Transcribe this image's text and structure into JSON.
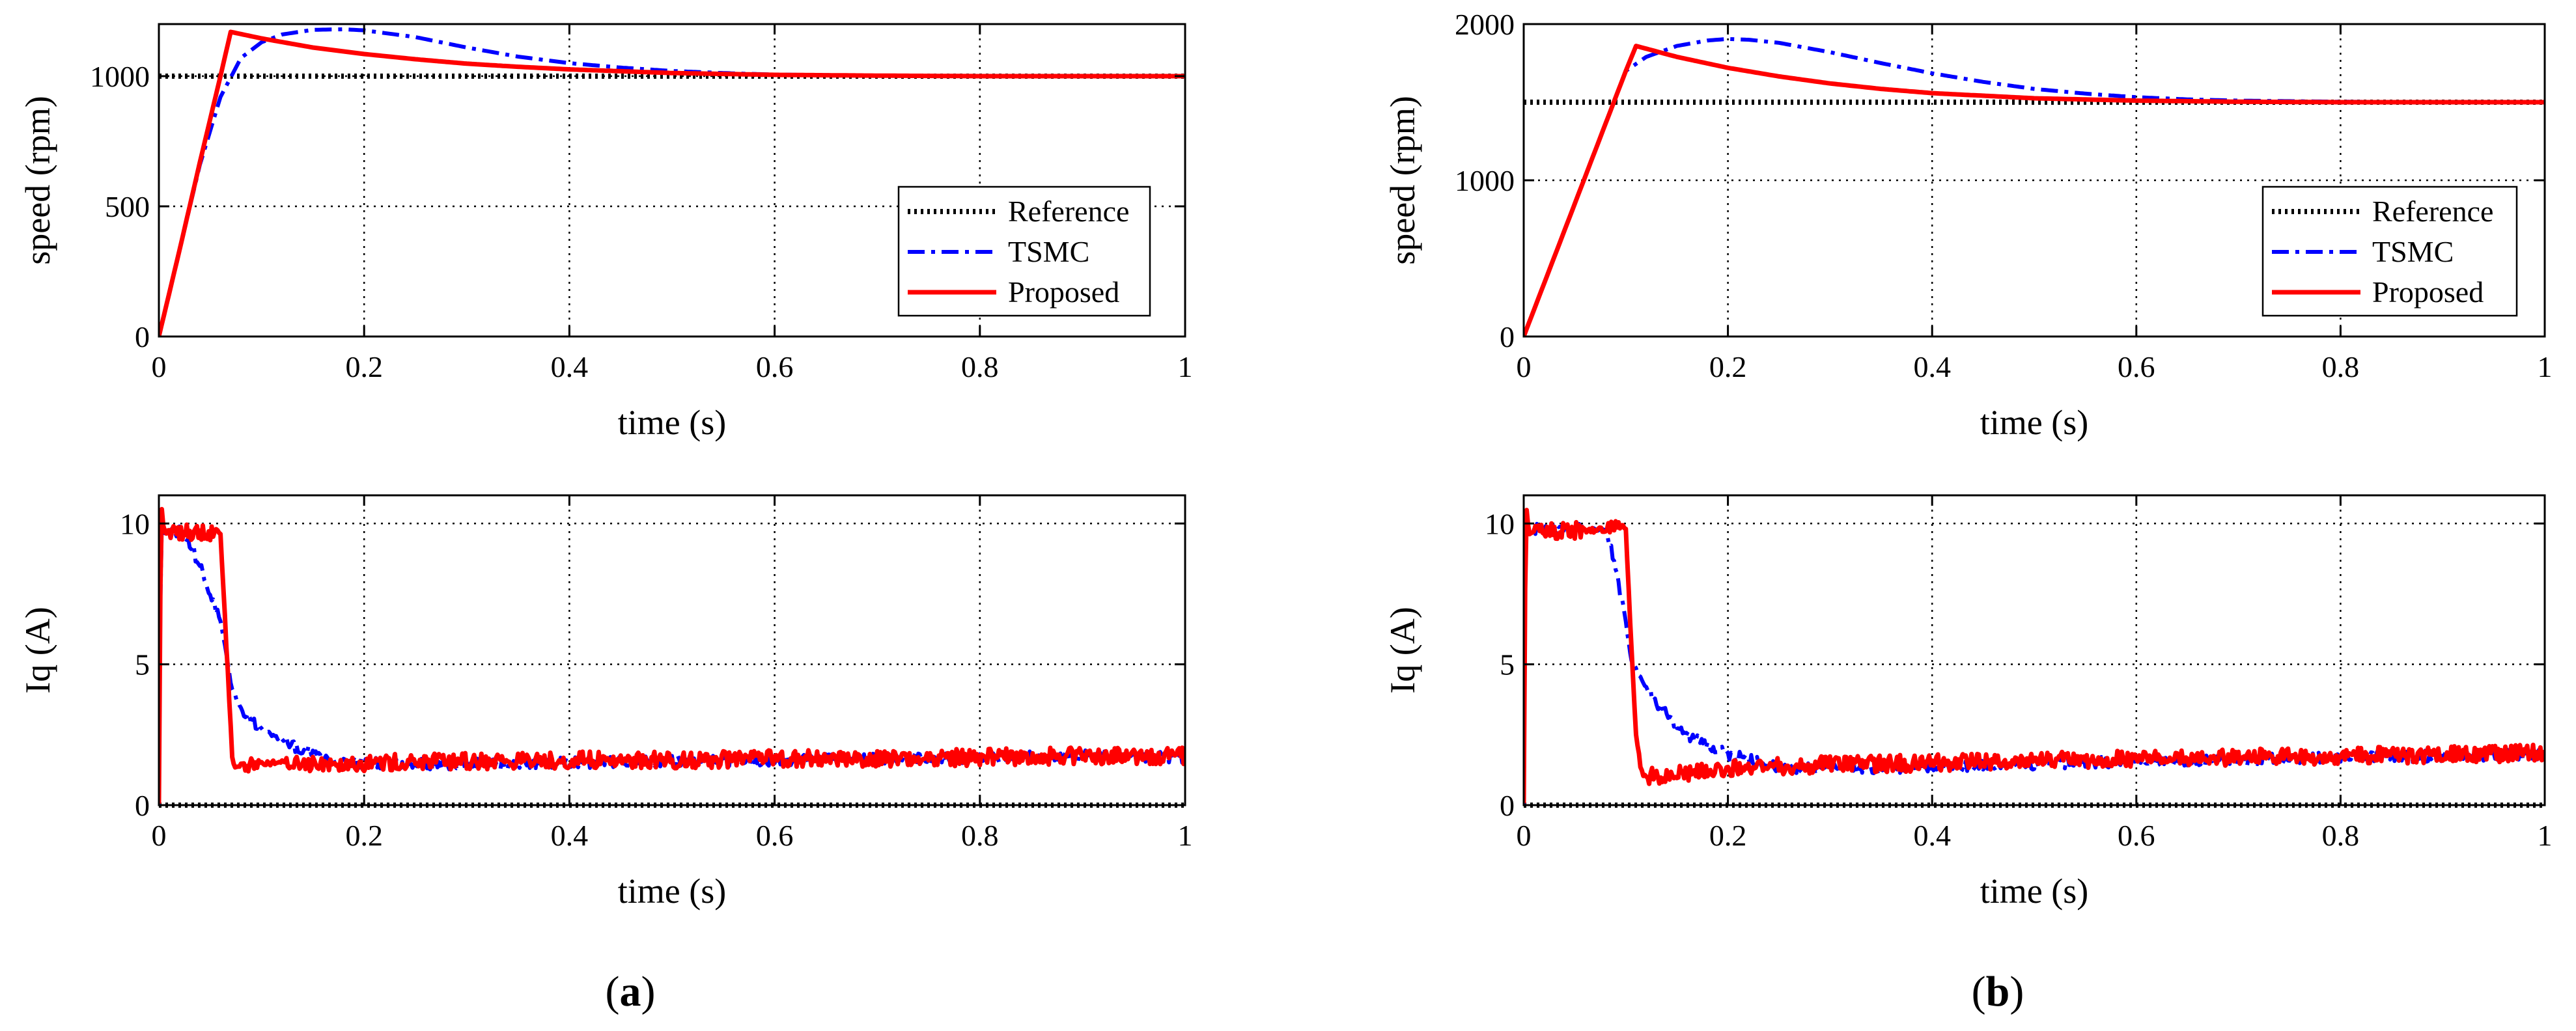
{
  "figure": {
    "captions": [
      {
        "open": "(",
        "letter": "a",
        "close": ")"
      },
      {
        "open": "(",
        "letter": "b",
        "close": ")"
      }
    ]
  },
  "colors": {
    "reference": "#000000",
    "tsmc": "#0000ff",
    "proposed": "#ff0000",
    "grid": "#000000",
    "axes": "#000000"
  },
  "chart_data": [
    {
      "id": "a-speed",
      "type": "line",
      "title": "",
      "xlabel": "time (s)",
      "ylabel": "speed (rpm)",
      "xlim": [
        0,
        1
      ],
      "ylim": [
        0,
        1200
      ],
      "xticks": [
        0,
        0.2,
        0.4,
        0.6,
        0.8,
        1
      ],
      "xticklabels": [
        "0",
        "0.2",
        "0.4",
        "0.6",
        "0.8",
        "1"
      ],
      "yticks": [
        0,
        500,
        1000
      ],
      "yticklabels": [
        "0",
        "500",
        "1000"
      ],
      "grid": true,
      "legend": {
        "placement": "right",
        "entries": [
          "Reference",
          "TSMC",
          "Proposed"
        ]
      },
      "series": [
        {
          "name": "Reference",
          "style": "dotted",
          "x": [
            0,
            1
          ],
          "y": [
            1000,
            1000
          ]
        },
        {
          "name": "TSMC",
          "style": "dashdot",
          "x": [
            0,
            0.02,
            0.04,
            0.06,
            0.08,
            0.1,
            0.12,
            0.15,
            0.18,
            0.2,
            0.25,
            0.3,
            0.35,
            0.4,
            0.45,
            0.5,
            0.55,
            0.6,
            0.7,
            0.8,
            0.9,
            1
          ],
          "y": [
            0,
            330,
            660,
            920,
            1070,
            1130,
            1160,
            1178,
            1180,
            1176,
            1150,
            1110,
            1075,
            1050,
            1033,
            1020,
            1012,
            1006,
            1002,
            1000,
            1000,
            1000
          ]
        },
        {
          "name": "Proposed",
          "style": "solid",
          "x": [
            0,
            0.02,
            0.04,
            0.06,
            0.07,
            0.1,
            0.15,
            0.2,
            0.25,
            0.3,
            0.35,
            0.4,
            0.5,
            0.6,
            0.7,
            0.8,
            0.9,
            1
          ],
          "y": [
            0,
            330,
            670,
            1000,
            1170,
            1145,
            1110,
            1085,
            1065,
            1048,
            1036,
            1026,
            1012,
            1005,
            1002,
            1000,
            1000,
            1000
          ]
        }
      ]
    },
    {
      "id": "a-iq",
      "type": "line",
      "title": "",
      "xlabel": "time (s)",
      "ylabel": "Iq (A)",
      "xlim": [
        0,
        1
      ],
      "ylim": [
        0,
        11
      ],
      "xticks": [
        0,
        0.2,
        0.4,
        0.6,
        0.8,
        1
      ],
      "xticklabels": [
        "0",
        "0.2",
        "0.4",
        "0.6",
        "0.8",
        "1"
      ],
      "yticks": [
        0,
        5,
        10
      ],
      "yticklabels": [
        "0",
        "5",
        "10"
      ],
      "grid": true,
      "series": [
        {
          "name": "Reference",
          "style": "dotted",
          "x": [
            0,
            1
          ],
          "y": [
            0,
            0
          ]
        },
        {
          "name": "TSMC",
          "style": "dashdot",
          "noise": 0.2,
          "x": [
            0,
            0.002,
            0.005,
            0.02,
            0.03,
            0.04,
            0.05,
            0.06,
            0.065,
            0.07,
            0.08,
            0.1,
            0.13,
            0.16,
            0.2,
            0.3,
            0.4,
            0.5,
            0.6,
            0.7,
            0.8,
            0.9,
            1
          ],
          "y": [
            0,
            10,
            9.7,
            9.7,
            9.3,
            8.5,
            7.5,
            6.5,
            5.5,
            4.3,
            3.4,
            2.7,
            2.1,
            1.7,
            1.5,
            1.45,
            1.5,
            1.55,
            1.6,
            1.65,
            1.7,
            1.75,
            1.7
          ]
        },
        {
          "name": "Proposed",
          "style": "solid",
          "noise": 0.3,
          "x": [
            0,
            0.002,
            0.005,
            0.06,
            0.066,
            0.072,
            0.08,
            0.1,
            0.2,
            0.3,
            0.4,
            0.5,
            0.6,
            0.7,
            0.8,
            0.9,
            1
          ],
          "y": [
            0,
            10.8,
            9.7,
            9.7,
            5.5,
            1.4,
            1.4,
            1.5,
            1.5,
            1.55,
            1.6,
            1.6,
            1.65,
            1.65,
            1.7,
            1.75,
            1.75
          ]
        }
      ]
    },
    {
      "id": "b-speed",
      "type": "line",
      "title": "",
      "xlabel": "time (s)",
      "ylabel": "speed (rpm)",
      "xlim": [
        0,
        1
      ],
      "ylim": [
        0,
        2000
      ],
      "xticks": [
        0,
        0.2,
        0.4,
        0.6,
        0.8,
        1
      ],
      "xticklabels": [
        "0",
        "0.2",
        "0.4",
        "0.6",
        "0.8",
        "1"
      ],
      "yticks": [
        0,
        1000,
        2000
      ],
      "yticklabels": [
        "0",
        "1000",
        "2000"
      ],
      "grid": true,
      "legend": {
        "placement": "right",
        "entries": [
          "Reference",
          "TSMC",
          "Proposed"
        ]
      },
      "series": [
        {
          "name": "Reference",
          "style": "dotted",
          "x": [
            0,
            1
          ],
          "y": [
            1500,
            1500
          ]
        },
        {
          "name": "TSMC",
          "style": "dashdot",
          "x": [
            0,
            0.05,
            0.1,
            0.12,
            0.15,
            0.18,
            0.2,
            0.22,
            0.25,
            0.3,
            0.35,
            0.4,
            0.45,
            0.5,
            0.55,
            0.6,
            0.65,
            0.7,
            0.8,
            0.9,
            1
          ],
          "y": [
            0,
            850,
            1700,
            1790,
            1860,
            1895,
            1905,
            1900,
            1880,
            1820,
            1750,
            1685,
            1630,
            1585,
            1555,
            1532,
            1518,
            1510,
            1503,
            1500,
            1500
          ]
        },
        {
          "name": "Proposed",
          "style": "solid",
          "x": [
            0,
            0.05,
            0.1,
            0.11,
            0.15,
            0.2,
            0.25,
            0.3,
            0.35,
            0.4,
            0.5,
            0.6,
            0.7,
            0.8,
            0.9,
            1
          ],
          "y": [
            0,
            850,
            1700,
            1860,
            1790,
            1720,
            1665,
            1620,
            1585,
            1558,
            1525,
            1510,
            1503,
            1500,
            1500,
            1500
          ]
        }
      ]
    },
    {
      "id": "b-iq",
      "type": "line",
      "title": "",
      "xlabel": "time (s)",
      "ylabel": "Iq (A)",
      "xlim": [
        0,
        1
      ],
      "ylim": [
        0,
        11
      ],
      "xticks": [
        0,
        0.2,
        0.4,
        0.6,
        0.8,
        1
      ],
      "xticklabels": [
        "0",
        "0.2",
        "0.4",
        "0.6",
        "0.8",
        "1"
      ],
      "yticks": [
        0,
        5,
        10
      ],
      "yticklabels": [
        "0",
        "5",
        "10"
      ],
      "grid": true,
      "series": [
        {
          "name": "Reference",
          "style": "dotted",
          "x": [
            0,
            1
          ],
          "y": [
            0,
            0
          ]
        },
        {
          "name": "TSMC",
          "style": "dashdot",
          "noise": 0.2,
          "x": [
            0,
            0.002,
            0.005,
            0.08,
            0.09,
            0.1,
            0.105,
            0.11,
            0.13,
            0.16,
            0.2,
            0.25,
            0.3,
            0.4,
            0.5,
            0.6,
            0.7,
            0.8,
            0.9,
            1
          ],
          "y": [
            0,
            10.5,
            9.8,
            9.8,
            8.5,
            6.5,
            5.2,
            4.8,
            3.6,
            2.5,
            1.8,
            1.35,
            1.3,
            1.35,
            1.45,
            1.55,
            1.6,
            1.7,
            1.75,
            1.8
          ]
        },
        {
          "name": "Proposed",
          "style": "solid",
          "noise": 0.3,
          "x": [
            0,
            0.002,
            0.005,
            0.1,
            0.105,
            0.11,
            0.115,
            0.12,
            0.2,
            0.3,
            0.4,
            0.5,
            0.6,
            0.7,
            0.8,
            0.9,
            1
          ],
          "y": [
            0,
            10.8,
            9.7,
            9.8,
            6,
            2.5,
            1.2,
            1.0,
            1.3,
            1.45,
            1.5,
            1.6,
            1.65,
            1.7,
            1.75,
            1.8,
            1.85
          ]
        }
      ]
    }
  ]
}
